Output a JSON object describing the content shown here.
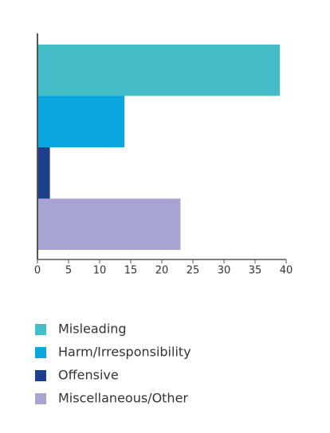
{
  "chart_data": {
    "type": "bar",
    "orientation": "horizontal",
    "categories": [
      "Misleading",
      "Harm/Irresponsibility",
      "Offensive",
      "Miscellaneous/Other"
    ],
    "values": [
      39,
      14,
      2,
      23
    ],
    "colors": [
      "#45bdc9",
      "#0aa6e0",
      "#1b3f8b",
      "#a8a4d2"
    ],
    "xlim": [
      0,
      40
    ],
    "xticks": [
      0,
      5,
      10,
      15,
      20,
      25,
      30,
      35,
      40
    ]
  }
}
